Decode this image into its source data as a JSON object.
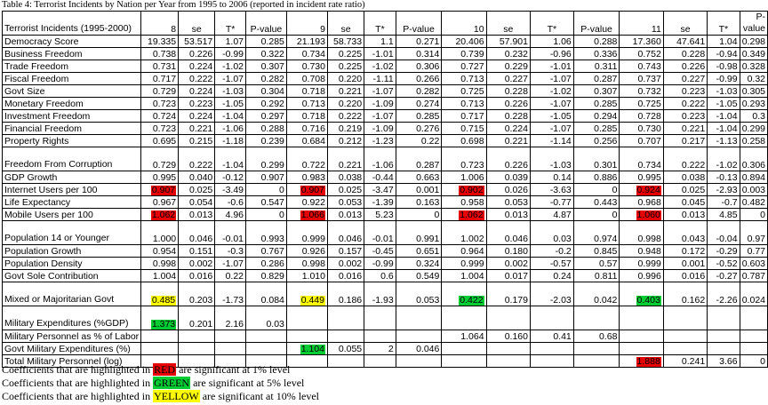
{
  "caption": "Table 4: Terrorist Incidents by Nation per Year from 1995 to 2006 (reported in incident rate ratio)",
  "colors": {
    "red": "#e60000",
    "green": "#00cc33",
    "yellow": "#ffff00"
  },
  "table": {
    "header": {
      "title": "Terrorist Incidents (1995-2000)",
      "cells": [
        "8",
        "se",
        "T*",
        "P-value",
        "9",
        "se",
        "T*",
        "P-value",
        "10",
        "se",
        "T*",
        "P-value",
        "11",
        "se",
        "T*",
        "P-value"
      ]
    },
    "rows": [
      {
        "label": "Democracy Score",
        "cells": [
          "19.335",
          "53.517",
          "1.07",
          "0.285",
          "21.193",
          "58.733",
          "1.1",
          "0.271",
          "20.406",
          "57.901",
          "1.06",
          "0.288",
          "17.360",
          "47.641",
          "1.04",
          "0.298"
        ],
        "hl": {}
      },
      {
        "label": "Business Freedom",
        "cells": [
          "0.738",
          "0.226",
          "-0.99",
          "0.322",
          "0.734",
          "0.225",
          "-1.01",
          "0.314",
          "0.739",
          "0.232",
          "-0.96",
          "0.336",
          "0.752",
          "0.228",
          "-0.94",
          "0.349"
        ],
        "hl": {}
      },
      {
        "label": "Trade Freedom",
        "cells": [
          "0.731",
          "0.224",
          "-1.02",
          "0.307",
          "0.730",
          "0.225",
          "-1.02",
          "0.306",
          "0.727",
          "0.229",
          "-1.01",
          "0.311",
          "0.743",
          "0.226",
          "-0.98",
          "0.328"
        ],
        "hl": {}
      },
      {
        "label": "Fiscal Freedom",
        "cells": [
          "0.717",
          "0.222",
          "-1.07",
          "0.282",
          "0.708",
          "0.220",
          "-1.11",
          "0.266",
          "0.713",
          "0.227",
          "-1.07",
          "0.287",
          "0.737",
          "0.227",
          "-0.99",
          "0.32"
        ],
        "hl": {}
      },
      {
        "label": "Govt Size",
        "cells": [
          "0.729",
          "0.224",
          "-1.03",
          "0.304",
          "0.718",
          "0.221",
          "-1.07",
          "0.282",
          "0.725",
          "0.228",
          "-1.02",
          "0.307",
          "0.732",
          "0.223",
          "-1.03",
          "0.305"
        ],
        "hl": {}
      },
      {
        "label": "Monetary Freedom",
        "cells": [
          "0.723",
          "0.223",
          "-1.05",
          "0.292",
          "0.713",
          "0.220",
          "-1.09",
          "0.274",
          "0.713",
          "0.226",
          "-1.07",
          "0.285",
          "0.725",
          "0.222",
          "-1.05",
          "0.293"
        ],
        "hl": {}
      },
      {
        "label": "Investment Freedom",
        "cells": [
          "0.724",
          "0.224",
          "-1.04",
          "0.297",
          "0.718",
          "0.222",
          "-1.07",
          "0.285",
          "0.717",
          "0.228",
          "-1.05",
          "0.294",
          "0.728",
          "0.223",
          "-1.04",
          "0.3"
        ],
        "hl": {}
      },
      {
        "label": "Financial Freedom",
        "cells": [
          "0.723",
          "0.221",
          "-1.06",
          "0.288",
          "0.716",
          "0.219",
          "-1.09",
          "0.276",
          "0.715",
          "0.224",
          "-1.07",
          "0.285",
          "0.730",
          "0.221",
          "-1.04",
          "0.299"
        ],
        "hl": {}
      },
      {
        "label": "Property Rights",
        "cells": [
          "0.695",
          "0.215",
          "-1.18",
          "0.239",
          "0.684",
          "0.212",
          "-1.23",
          "0.22",
          "0.698",
          "0.221",
          "-1.14",
          "0.256",
          "0.707",
          "0.217",
          "-1.13",
          "0.258"
        ],
        "hl": {}
      },
      {
        "label": "Freedom From Corruption",
        "ml": true,
        "cells": [
          "0.729",
          "0.222",
          "-1.04",
          "0.299",
          "0.722",
          "0.221",
          "-1.06",
          "0.287",
          "0.723",
          "0.226",
          "-1.03",
          "0.301",
          "0.734",
          "0.222",
          "-1.02",
          "0.306"
        ],
        "hl": {}
      },
      {
        "label": "GDP Growth",
        "cells": [
          "0.995",
          "0.040",
          "-0.12",
          "0.907",
          "0.983",
          "0.038",
          "-0.44",
          "0.663",
          "1.006",
          "0.039",
          "0.14",
          "0.886",
          "0.995",
          "0.038",
          "-0.13",
          "0.894"
        ],
        "hl": {}
      },
      {
        "label": "Internet Users per 100",
        "cells": [
          "0.907",
          "0.025",
          "-3.49",
          "0",
          "0.907",
          "0.025",
          "-3.47",
          "0.001",
          "0.902",
          "0.026",
          "-3.63",
          "0",
          "0.924",
          "0.025",
          "-2.93",
          "0.003"
        ],
        "hl": {
          "0": "red",
          "4": "red",
          "8": "red",
          "12": "red"
        }
      },
      {
        "label": "Life Expectancy",
        "cells": [
          "0.967",
          "0.054",
          "-0.6",
          "0.547",
          "0.922",
          "0.053",
          "-1.39",
          "0.163",
          "0.958",
          "0.053",
          "-0.77",
          "0.443",
          "0.968",
          "0.045",
          "-0.7",
          "0.482"
        ],
        "hl": {}
      },
      {
        "label": "Mobile Users per 100",
        "cells": [
          "1.062",
          "0.013",
          "4.96",
          "0",
          "1.066",
          "0.013",
          "5.23",
          "0",
          "1.062",
          "0.013",
          "4.87",
          "0",
          "1.060",
          "0.013",
          "4.85",
          "0"
        ],
        "hl": {
          "0": "red",
          "4": "red",
          "8": "red",
          "12": "red"
        }
      },
      {
        "label": "Population 14 or Younger",
        "ml": true,
        "cells": [
          "1.000",
          "0.046",
          "-0.01",
          "0.993",
          "0.999",
          "0.046",
          "-0.01",
          "0.991",
          "1.002",
          "0.046",
          "0.03",
          "0.974",
          "0.998",
          "0.043",
          "-0.04",
          "0.97"
        ],
        "hl": {}
      },
      {
        "label": "Population Growth",
        "cells": [
          "0.954",
          "0.151",
          "-0.3",
          "0.767",
          "0.926",
          "0.157",
          "-0.45",
          "0.651",
          "0.964",
          "0.180",
          "-0.2",
          "0.845",
          "0.948",
          "0.172",
          "-0.29",
          "0.77"
        ],
        "hl": {}
      },
      {
        "label": "Population Density",
        "cells": [
          "0.998",
          "0.002",
          "-1.07",
          "0.286",
          "0.998",
          "0.002",
          "-0.99",
          "0.324",
          "0.999",
          "0.002",
          "-0.57",
          "0.57",
          "0.999",
          "0.001",
          "-0.52",
          "0.603"
        ],
        "hl": {}
      },
      {
        "label": "Govt Sole Contribution",
        "cells": [
          "1.004",
          "0.016",
          "0.22",
          "0.829",
          "1.010",
          "0.016",
          "0.6",
          "0.549",
          "1.004",
          "0.017",
          "0.24",
          "0.811",
          "0.996",
          "0.016",
          "-0.27",
          "0.787"
        ],
        "hl": {}
      },
      {
        "label": "Mixed or Majoritarian Govt",
        "ml": true,
        "cells": [
          "0.485",
          "0.203",
          "-1.73",
          "0.084",
          "0.449",
          "0.186",
          "-1.93",
          "0.053",
          "0.422",
          "0.179",
          "-2.03",
          "0.042",
          "0.403",
          "0.162",
          "-2.26",
          "0.024"
        ],
        "hl": {
          "0": "yellow",
          "4": "yellow",
          "8": "green",
          "12": "green"
        }
      },
      {
        "label": "Military Expenditures (%GDP)",
        "ml": true,
        "cells": [
          "1.373",
          "0.201",
          "2.16",
          "0.03",
          "",
          "",
          "",
          "",
          "",
          "",
          "",
          "",
          "",
          "",
          "",
          ""
        ],
        "hl": {
          "0": "green"
        }
      },
      {
        "label": "Military Personnel as % of Labor",
        "cells": [
          "",
          "",
          "",
          "",
          "",
          "",
          "",
          "",
          "1.064",
          "0.160",
          "0.41",
          "0.68",
          "",
          "",
          "",
          ""
        ],
        "hl": {}
      },
      {
        "label": "Govt Military Expenditures (%)",
        "cells": [
          "",
          "",
          "",
          "",
          "1.104",
          "0.055",
          "2",
          "0.046",
          "",
          "",
          "",
          "",
          "",
          "",
          "",
          ""
        ],
        "hl": {
          "4": "green"
        }
      },
      {
        "label": "Total Military Personnel (log)",
        "cells": [
          "",
          "",
          "",
          "",
          "",
          "",
          "",
          "",
          "",
          "",
          "",
          "",
          "1.888",
          "0.241",
          "3.66",
          "0"
        ],
        "hl": {
          "12": "red"
        }
      }
    ]
  },
  "notes": [
    {
      "pre": "Coefficients that are highlighted in ",
      "key": "RED",
      "color": "red",
      "post": " are significant at 1% level"
    },
    {
      "pre": "Coefficients that are highlighted in ",
      "key": "GREEN",
      "color": "green",
      "post": " are significant at 5% level"
    },
    {
      "pre": "Coefficients that are highlighted in ",
      "key": "YELLOW",
      "color": "yellow",
      "post": " are significant at 10% level"
    }
  ]
}
